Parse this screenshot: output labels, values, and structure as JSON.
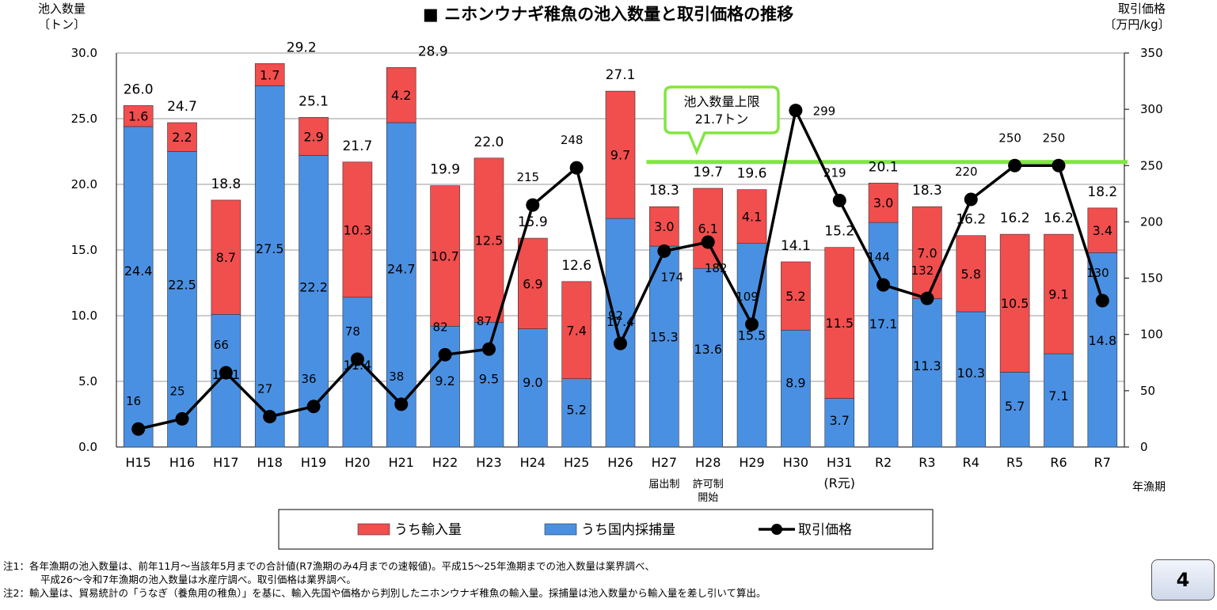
{
  "chart_data": {
    "type": "bar+line",
    "title": "■ ニホンウナギ稚魚の池入数量と取引価格の推移",
    "y_left_label": [
      "池入数量",
      "〔トン〕"
    ],
    "y_right_label": [
      "取引価格",
      "〔万円/kg〕"
    ],
    "x_axis_label": "年漁期",
    "y_left_range": [
      0,
      30
    ],
    "y_left_ticks": [
      "0.0",
      "5.0",
      "10.0",
      "15.0",
      "20.0",
      "25.0",
      "30.0"
    ],
    "y_right_range": [
      0,
      350
    ],
    "y_right_ticks": [
      "0",
      "50",
      "100",
      "150",
      "200",
      "250",
      "300",
      "350"
    ],
    "categories": [
      "H15",
      "H16",
      "H17",
      "H18",
      "H19",
      "H20",
      "H21",
      "H22",
      "H23",
      "H24",
      "H25",
      "H26",
      "H27",
      "H28",
      "H29",
      "H30",
      "H31",
      "R2",
      "R3",
      "R4",
      "R5",
      "R6",
      "R7"
    ],
    "category_sublabels": [
      "",
      "",
      "",
      "",
      "",
      "",
      "",
      "",
      "",
      "",
      "",
      "",
      "届出制",
      "許可制\n開始",
      "",
      "",
      "(R元)",
      "",
      "",
      "",
      "",
      "",
      ""
    ],
    "series": [
      {
        "name": "うち国内採捕量",
        "color": "#4a90e2",
        "values": [
          24.4,
          22.5,
          10.1,
          27.5,
          22.2,
          11.4,
          24.7,
          9.2,
          9.5,
          9.0,
          5.2,
          17.4,
          15.3,
          13.6,
          15.5,
          8.9,
          3.7,
          17.1,
          11.3,
          10.3,
          5.7,
          7.1,
          14.8
        ]
      },
      {
        "name": "うち輸入量",
        "color": "#f14e4e",
        "values": [
          1.6,
          2.2,
          8.7,
          1.7,
          2.9,
          10.3,
          4.2,
          10.7,
          12.5,
          6.9,
          7.4,
          9.7,
          3.0,
          6.1,
          4.1,
          5.2,
          11.5,
          3.0,
          7.0,
          5.8,
          10.5,
          9.1,
          3.4
        ]
      },
      {
        "name": "取引価格",
        "color": "#000000",
        "axis": "right",
        "values": [
          16,
          25,
          66,
          27,
          36,
          78,
          38,
          82,
          87,
          215,
          248,
          92,
          174,
          182,
          109,
          299,
          219,
          144,
          132,
          220,
          250,
          250,
          130
        ]
      }
    ],
    "totals": [
      "26.0",
      "24.7",
      "18.8",
      "29.2",
      "25.1",
      "21.7",
      "28.9",
      "19.9",
      "22.0",
      "15.9",
      "12.6",
      "27.1",
      "18.3",
      "19.7",
      "19.6",
      "14.1",
      "15.2",
      "20.1",
      "18.3",
      "16.2",
      "16.2",
      "16.2",
      "18.2"
    ],
    "domestic_labels": [
      "24.4",
      "22.5",
      "10.1",
      "27.5",
      "22.2",
      "11.4",
      "24.7",
      "9.2",
      "9.5",
      "9.0",
      "5.2",
      "17.4",
      "15.3",
      "13.6",
      "15.5",
      "8.9",
      "3.7",
      "17.1",
      "11.3",
      "10.3",
      "5.7",
      "7.1",
      "14.8"
    ],
    "import_labels": [
      "1.6",
      "2.2",
      "8.7",
      "1.7",
      "2.9",
      "10.3",
      "4.2",
      "10.7",
      "12.5",
      "6.9",
      "7.4",
      "9.7",
      "3.0",
      "6.1",
      "4.1",
      "5.2",
      "11.5",
      "3.0",
      "7.0",
      "5.8",
      "10.5",
      "9.1",
      "3.4"
    ],
    "price_labels": [
      "16",
      "25",
      "66",
      "27",
      "36",
      "78",
      "38",
      "82",
      "87",
      "215",
      "248",
      "92",
      "174",
      "182",
      "109",
      "299",
      "219",
      "144",
      "132",
      "220",
      "250",
      "250",
      "130"
    ],
    "limit_line": {
      "value": 21.7,
      "from_category": "H27",
      "color": "#80e640"
    },
    "limit_callout": [
      "池入数量上限",
      "21.7トン"
    ],
    "legend_placement": "bottom-center",
    "grid": true
  },
  "notes": [
    "注1：各年漁期の池入数量は、前年11月～当該年5月までの合計値(R7漁期のみ4月までの速報値)。平成15～25年漁期までの池入数量は業界調べ、",
    "平成26～令和7年漁期の池入数量は水産庁調べ。取引価格は業界調べ。",
    "注2：輸入量は、貿易統計の「うなぎ（養魚用の稚魚）」を基に、輸入先国や価格から判別したニホンウナギ稚魚の輸入量。採捕量は池入数量から輸入量を差し引いて算出。"
  ],
  "page_number": "4"
}
